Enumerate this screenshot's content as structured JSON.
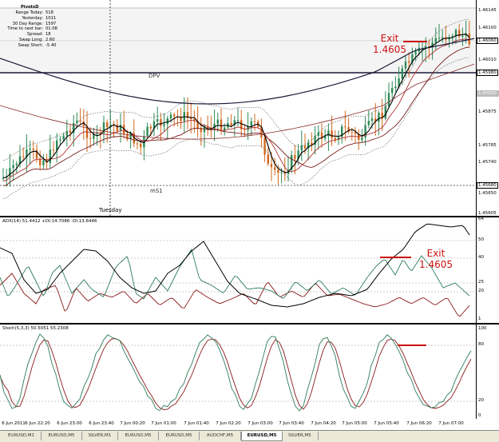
{
  "info_panel": {
    "title": "PivotsD",
    "rows": [
      {
        "k": "Range Today:",
        "v": "518"
      },
      {
        "k": "Yesterday:",
        "v": "1011"
      },
      {
        "k": "30 Day Range:",
        "v": "1597"
      },
      {
        "k": "Time to next bar:",
        "v": "01:08"
      },
      {
        "k": "Spread:",
        "v": "18"
      },
      {
        "k": "Swap Long:",
        "v": "2.60"
      },
      {
        "k": "Swap Short:",
        "v": "-5.40"
      }
    ]
  },
  "main_chart": {
    "labels": {
      "dpv": "DPV",
      "ms1": "mS1",
      "tuesday": "Tuesday"
    },
    "exit_label": {
      "line1": "Exit",
      "line2": "1.4605"
    },
    "axis_ticks": [
      "1.46145",
      "1.46100",
      "1.46060",
      "1.46010",
      "1.45980",
      "1.45920",
      "1.45875",
      "1.45785",
      "1.45740",
      "1.45680",
      "1.45650",
      "1.45605"
    ],
    "price_boxes": {
      "current": "1.46060",
      "dpv": "1.45980",
      "ms1": "1.45680",
      "grey": "1.45920"
    }
  },
  "adx": {
    "header": "ADX(14) 51.4412 +DI:14.7086 -DI:13.6446",
    "exit_label": {
      "line1": "Exit",
      "line2": "1.4605"
    },
    "axis_ticks": [
      "64",
      "50",
      "40",
      "25",
      "20",
      "1"
    ]
  },
  "stoch": {
    "header": "Stoch(5,3,3) 50.5051 55.2308",
    "axis_ticks": [
      "100",
      "80",
      "20",
      "0"
    ]
  },
  "time_axis": [
    "6 Jun 2011",
    "6 Jun 22:20",
    "6 Jun 23:00",
    "6 Jun 23:40",
    "7 Jun 00:20",
    "7 Jun 01:00",
    "7 Jun 01:40",
    "7 Jun 02:20",
    "7 Jun 03:00",
    "7 Jun 03:40",
    "7 Jun 04:20",
    "7 Jun 05:00",
    "7 Jun 05:40",
    "7 Jun 06:20",
    "7 Jun 07:00"
  ],
  "tabs": [
    "EURUSD,M1",
    "EURUSD,M5",
    "SILVER,M1",
    "EURUSD,M5",
    "EURUSD,M5",
    "AUDCHF,M5",
    "EURUSD,M5",
    "SILVER,M5"
  ],
  "active_tab_index": 6,
  "colors": {
    "exit_red": "#cc1111",
    "adx_main": "#000000",
    "plus_di": "#2e7d5b",
    "minus_di": "#8b1a1a",
    "stoch_main": "#2e7d5b",
    "stoch_signal": "#8b1a1a",
    "bull_candle": "#2e8b57",
    "bear_candle": "#d2691e"
  }
}
